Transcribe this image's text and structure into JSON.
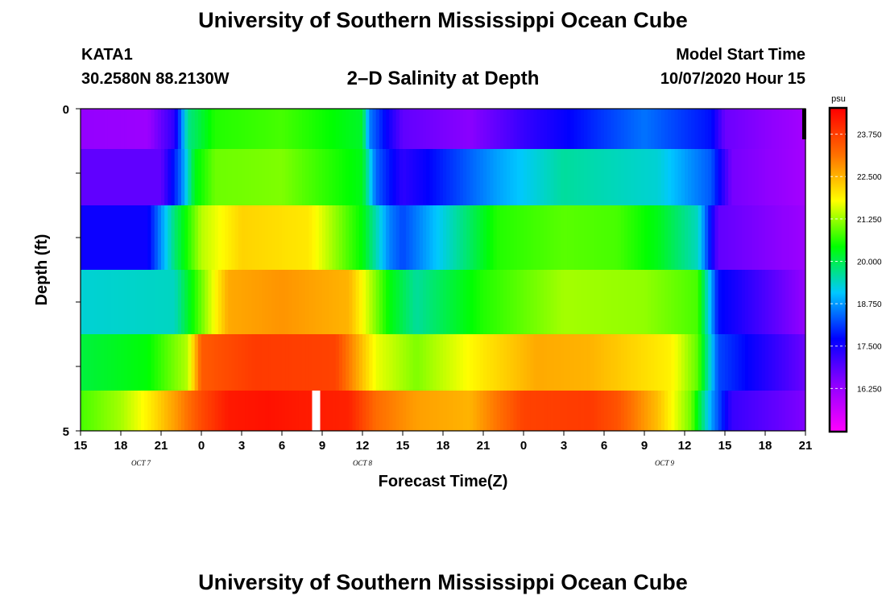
{
  "header": {
    "title": "University of Southern Mississippi Ocean Cube",
    "station_id": "KATA1",
    "coordinates": "30.2580N 88.2130W",
    "plot_title": "2–D Salinity at Depth",
    "model_start_label": "Model Start Time",
    "model_start_value": "10/07/2020 Hour 15"
  },
  "footer": {
    "title": "University of Southern Mississippi Ocean Cube"
  },
  "colors": {
    "scale": [
      "#ff00ff",
      "#8f00ff",
      "#0000ff",
      "#00c8ff",
      "#00ff00",
      "#ffff00",
      "#ff7000",
      "#ff0000"
    ],
    "missing": "#ffffff"
  },
  "chart_data": {
    "type": "heatmap",
    "title": "2–D Salinity at Depth",
    "xlabel": "Forecast Time(Z)",
    "ylabel": "Depth (ft)",
    "x_ticks": [
      "15",
      "18",
      "21",
      "0",
      "3",
      "6",
      "9",
      "12",
      "15",
      "18",
      "21",
      "0",
      "3",
      "6",
      "9",
      "12",
      "15",
      "18",
      "21"
    ],
    "date_labels": [
      {
        "text": "OCT 7",
        "tick_index": 1.5
      },
      {
        "text": "OCT 8",
        "tick_index": 7
      },
      {
        "text": "OCT 9",
        "tick_index": 14.5
      }
    ],
    "y_tick_labels": [
      "0",
      "5"
    ],
    "y_range_ft": [
      0,
      5
    ],
    "depth_levels_ft": [
      0.25,
      1.0,
      2.0,
      3.0,
      4.0,
      4.75
    ],
    "time_range_hours": [
      0,
      54
    ],
    "colorbar": {
      "unit": "psu",
      "min": 15.0,
      "max": 24.5,
      "ticks": [
        "23.750",
        "22.500",
        "21.250",
        "20.000",
        "18.750",
        "17.500",
        "16.250"
      ]
    },
    "rows": [
      {
        "depth_ft": 0.25,
        "t": [
          0,
          5,
          7,
          8,
          10,
          15,
          21,
          21.5,
          24,
          29,
          33,
          39,
          42,
          47,
          48,
          54
        ],
        "v": [
          16.3,
          16.2,
          17.3,
          19.7,
          20.6,
          20.8,
          20.2,
          18.6,
          16.8,
          16.4,
          17.2,
          18.1,
          18.5,
          17.8,
          16.7,
          16.1
        ]
      },
      {
        "depth_ft": 1.0,
        "t": [
          0,
          6,
          7.5,
          8.5,
          10,
          15,
          21,
          22,
          24,
          31,
          36,
          43,
          47,
          48.5,
          54
        ],
        "v": [
          16.8,
          16.8,
          18.5,
          20.3,
          21.0,
          21.1,
          20.3,
          18.4,
          17.3,
          18.8,
          19.6,
          19.3,
          18.3,
          16.6,
          16.1
        ]
      },
      {
        "depth_ft": 2.0,
        "t": [
          0,
          5,
          7,
          9,
          12,
          17,
          21,
          23,
          24,
          31,
          36,
          40,
          43,
          46,
          47.5,
          54
        ],
        "v": [
          17.6,
          17.6,
          19.8,
          21.4,
          22.2,
          22.0,
          20.4,
          18.6,
          18.2,
          20.6,
          20.9,
          20.8,
          20.3,
          19.4,
          16.8,
          16.2
        ]
      },
      {
        "depth_ft": 3.0,
        "t": [
          0,
          7,
          9,
          11,
          15,
          20,
          23,
          25,
          30,
          36,
          42,
          46,
          47.5,
          54
        ],
        "v": [
          19.3,
          19.4,
          21.0,
          22.6,
          22.8,
          22.5,
          20.4,
          19.6,
          20.6,
          21.3,
          21.2,
          20.8,
          17.8,
          16.3
        ]
      },
      {
        "depth_ft": 4.0,
        "t": [
          0,
          5,
          8,
          9,
          13,
          19,
          22,
          25,
          30,
          34,
          38,
          44,
          46,
          47.5,
          54
        ],
        "v": [
          20.1,
          20.4,
          21.4,
          23.4,
          23.8,
          23.7,
          21.7,
          21.1,
          22.0,
          22.6,
          22.5,
          21.9,
          20.9,
          18.2,
          16.7
        ]
      },
      {
        "depth_ft": 4.75,
        "t": [
          0,
          3,
          5,
          7,
          9,
          11,
          14,
          16,
          20,
          22,
          25,
          29,
          33,
          38,
          40,
          43,
          45.5,
          47,
          48.5,
          54
        ],
        "v": [
          20.8,
          21.3,
          21.9,
          22.7,
          23.6,
          24.2,
          24.3,
          24.2,
          24.1,
          23.2,
          22.7,
          22.5,
          23.7,
          23.8,
          23.5,
          22.4,
          21.0,
          18.8,
          17.2,
          16.5
        ]
      }
    ],
    "missing_cell": {
      "depth_ft": 4.75,
      "t_start": 17.25,
      "t_end": 17.85
    }
  }
}
